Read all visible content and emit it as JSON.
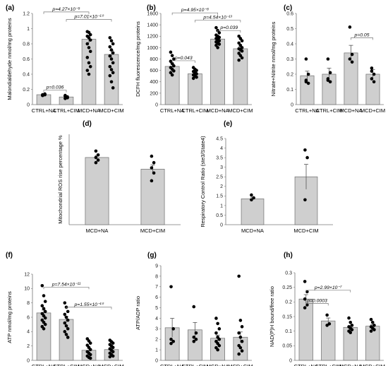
{
  "chart_data": [
    {
      "panel": "(a)",
      "type": "bar",
      "categories": [
        "CTRL+NA",
        "CTRL+CIM",
        "MCD+NA",
        "MCD+CIM"
      ],
      "values": [
        0.13,
        0.1,
        0.86,
        0.66
      ],
      "errors": [
        0.01,
        0.02,
        0.05,
        0.05
      ],
      "points": [
        [
          0.12,
          0.13,
          0.13,
          0.14,
          0.12,
          0.13
        ],
        [
          0.08,
          0.1,
          0.12,
          0.09,
          0.11
        ],
        [
          0.96,
          0.95,
          0.92,
          0.9,
          0.88,
          0.85,
          0.8,
          0.75,
          0.7,
          0.62,
          0.55,
          0.5,
          0.45,
          0.4
        ],
        [
          0.88,
          0.84,
          0.8,
          0.76,
          0.72,
          0.68,
          0.64,
          0.6,
          0.55,
          0.5,
          0.46,
          0.42,
          0.38,
          0.3,
          0.22
        ]
      ],
      "ylabel": "Malondialdehyde nmol/mg proteins",
      "ylim": [
        0,
        1.2
      ],
      "yticks": [
        "0",
        "0.2",
        "0.4",
        "0.6",
        "0.8",
        "1",
        "1.2"
      ],
      "annotations": [
        {
          "text": "p=0.036",
          "from": 0,
          "to": 1,
          "y": 0.19
        },
        {
          "text": "p=4.27×10⁻⁹",
          "from": 0,
          "to": 2,
          "y": 1.22
        },
        {
          "text": "p=7.01×10⁻¹⁰",
          "from": 1,
          "to": 3,
          "y": 1.12
        }
      ]
    },
    {
      "panel": "(b)",
      "type": "bar",
      "categories": [
        "CTRL+NA",
        "CTRL+CIM",
        "MCD+NA",
        "MCD+CIM"
      ],
      "values": [
        670,
        540,
        1150,
        980
      ],
      "errors": [
        50,
        30,
        40,
        40
      ],
      "points": [
        [
          920,
          860,
          800,
          760,
          720,
          680,
          650,
          620,
          590,
          560,
          520
        ],
        [
          650,
          620,
          600,
          580,
          560,
          540,
          520,
          500,
          480,
          460
        ],
        [
          1350,
          1300,
          1260,
          1220,
          1200,
          1180,
          1160,
          1140,
          1120,
          1100,
          1080,
          1060,
          1040,
          1000
        ],
        [
          1200,
          1160,
          1120,
          1080,
          1040,
          1000,
          980,
          960,
          940,
          900,
          860,
          820,
          780
        ]
      ],
      "ylabel": "DCFH fluorescence/mg proteins",
      "ylim": [
        0,
        1600
      ],
      "yticks": [
        "0",
        "200",
        "400",
        "600",
        "800",
        "1000",
        "1200",
        "1400",
        "1600"
      ],
      "annotations": [
        {
          "text": "p=0.043",
          "from": 0,
          "to": 1,
          "y": 770
        },
        {
          "text": "p=4.95×10⁻⁸",
          "from": 0,
          "to": 2,
          "y": 1610
        },
        {
          "text": "p=4.54×10⁻¹³",
          "from": 1,
          "to": 3,
          "y": 1480
        },
        {
          "text": "p=0.039",
          "from": 2,
          "to": 3,
          "y": 1300
        }
      ]
    },
    {
      "panel": "(c)",
      "type": "bar",
      "categories": [
        "CTRL+NA",
        "CTRL+CIM",
        "MCD+NA",
        "MCD+CIM"
      ],
      "values": [
        0.19,
        0.2,
        0.34,
        0.2
      ],
      "errors": [
        0.03,
        0.04,
        0.05,
        0.03
      ],
      "points": [
        [
          0.3,
          0.2,
          0.15,
          0.14,
          0.16
        ],
        [
          0.3,
          0.21,
          0.17,
          0.15,
          0.16
        ],
        [
          0.51,
          0.33,
          0.3,
          0.28
        ],
        [
          0.24,
          0.2,
          0.17,
          0.15,
          0.22
        ]
      ],
      "ylabel": "Nitrate+Nitrite nmol/mg proteins",
      "ylim": [
        0,
        0.6
      ],
      "yticks": [
        "0",
        "0.1",
        "0.2",
        "0.3",
        "0.4",
        "0.5",
        "0.6"
      ],
      "annotations": [
        {
          "text": "p=0.05",
          "from": 2,
          "to": 3,
          "y": 0.44
        }
      ]
    },
    {
      "panel": "(d)",
      "type": "bar",
      "categories": [
        "MCD+NA",
        "MCD+CIM"
      ],
      "values": [
        26,
        21.5
      ],
      "errors": [
        0.8,
        1.6
      ],
      "points": [
        [
          28.5,
          27,
          26,
          25,
          24
        ],
        [
          26.5,
          24,
          22,
          20,
          17
        ]
      ],
      "ylabel": "Mitochondrial ROS rise percentage %",
      "ylim": [
        0,
        35
      ],
      "yticks": [],
      "annotations": []
    },
    {
      "panel": "(e)",
      "type": "bar",
      "categories": [
        "MCD+NA",
        "MCD+CIM"
      ],
      "values": [
        1.35,
        2.5
      ],
      "errors": [
        0.08,
        0.65
      ],
      "points": [
        [
          1.55,
          1.4,
          1.3
        ],
        [
          3.9,
          3.5,
          1.3
        ]
      ],
      "ylabel": "Respiratory Control Ratio (ste3/State4)",
      "ylim": [
        0,
        4.5
      ],
      "yticks": [
        "0",
        "0.5",
        "1",
        "1.5",
        "2",
        "2.5",
        "3",
        "3.5",
        "4",
        "4.5"
      ],
      "annotations": []
    },
    {
      "panel": "(f)",
      "type": "bar",
      "categories": [
        "CTRL+NA",
        "CTRL+CIM",
        "MCD+NA",
        "MCD+CIM"
      ],
      "values": [
        6.6,
        5.7,
        1.4,
        1.5
      ],
      "errors": [
        0.4,
        0.4,
        0.3,
        0.2
      ],
      "points": [
        [
          10.4,
          9.0,
          8.2,
          7.6,
          7.2,
          6.8,
          6.5,
          6.2,
          5.9,
          5.6,
          5.3,
          5.0,
          4.7,
          4.4
        ],
        [
          8.0,
          7.4,
          6.8,
          6.4,
          6.0,
          5.6,
          5.2,
          4.8,
          4.4,
          4.0,
          3.6,
          3.2
        ],
        [
          3.0,
          2.7,
          2.4,
          2.1,
          1.8,
          1.5,
          1.2,
          1.0,
          0.8,
          0.6,
          0.4,
          0.3
        ],
        [
          2.8,
          2.6,
          2.4,
          2.2,
          2.0,
          1.8,
          1.6,
          1.4,
          1.2,
          1.0,
          0.8,
          0.6,
          0.5
        ]
      ],
      "ylabel": "ATP nmol/mg proteins",
      "ylim": [
        0,
        12
      ],
      "yticks": [
        "0",
        "2",
        "4",
        "6",
        "8",
        "10",
        "12"
      ],
      "annotations": [
        {
          "text": "p=7.54×10⁻¹¹",
          "from": 0,
          "to": 2,
          "y": 10.2
        },
        {
          "text": "p=1.55×10⁻¹⁰",
          "from": 1,
          "to": 3,
          "y": 7.4
        }
      ]
    },
    {
      "panel": "(g)",
      "type": "bar",
      "categories": [
        "CTRL+NA",
        "CTRL+CIM",
        "MCD+NA",
        "MCD+CIM"
      ],
      "values": [
        3.1,
        2.9,
        2.1,
        2.2
      ],
      "errors": [
        0.9,
        0.7,
        0.3,
        0.5
      ],
      "points": [
        [
          7.0,
          3.0,
          2.0,
          1.8,
          1.6
        ],
        [
          5.1,
          2.6,
          2.2,
          2.0,
          1.8
        ],
        [
          4.0,
          3.5,
          3.0,
          2.6,
          2.2,
          2.0,
          1.8,
          1.6,
          1.4,
          1.2,
          1.0
        ],
        [
          8.0,
          3.8,
          3.2,
          2.6,
          2.2,
          1.8,
          1.4,
          1.2,
          0.9,
          0.6
        ]
      ],
      "ylabel": "ATP/ADP ratio",
      "ylim": [
        0,
        9
      ],
      "yticks": [
        "0",
        "1",
        "2",
        "3",
        "4",
        "5",
        "6",
        "7",
        "8",
        "9"
      ],
      "annotations": []
    },
    {
      "panel": "(h)",
      "type": "bar",
      "categories": [
        "CTRL+NA",
        "CTRL+CIM",
        "MCD+NA",
        "MCD+CIM"
      ],
      "values": [
        0.21,
        0.135,
        0.113,
        0.117
      ],
      "errors": [
        0.015,
        0.01,
        0.006,
        0.005
      ],
      "points": [
        [
          0.27,
          0.235,
          0.21,
          0.19,
          0.18
        ],
        [
          0.155,
          0.125,
          0.12
        ],
        [
          0.145,
          0.13,
          0.12,
          0.115,
          0.11,
          0.105,
          0.1,
          0.095
        ],
        [
          0.14,
          0.13,
          0.12,
          0.115,
          0.11,
          0.105,
          0.1
        ]
      ],
      "ylabel": "NAD(P)H bound/free ratio",
      "ylim": [
        0,
        0.3
      ],
      "yticks": [
        "0",
        "0.05",
        "0.1",
        "0.15",
        "0.2",
        "0.25",
        "0.3"
      ],
      "annotations": [
        {
          "text": "p=2.99×10⁻⁷",
          "from": 0,
          "to": 2,
          "y": 0.24
        },
        {
          "text": "p=0.0003",
          "from": 0,
          "to": 1,
          "y": 0.195
        }
      ]
    }
  ]
}
